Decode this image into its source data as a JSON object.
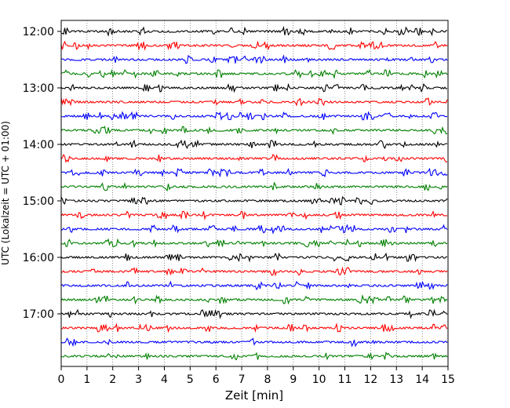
{
  "chart_data": {
    "type": "line",
    "title": "",
    "xlabel": "Zeit  [min]",
    "ylabel": "UTC (Lokalzeit = UTC + 01:00)",
    "xlim": [
      0,
      15
    ],
    "x_ticks": [
      0,
      1,
      2,
      3,
      4,
      5,
      6,
      7,
      8,
      9,
      10,
      11,
      12,
      13,
      14,
      15
    ],
    "x_tick_labels": [
      "0",
      "1",
      "2",
      "3",
      "4",
      "5",
      "6",
      "7",
      "8",
      "9",
      "10",
      "11",
      "12",
      "13",
      "14",
      "15"
    ],
    "y_tick_labels": [
      "12:00",
      "13:00",
      "14:00",
      "15:00",
      "16:00",
      "17:00"
    ],
    "trace_colors": [
      "#000000",
      "#ff0000",
      "#0000ff",
      "#008000"
    ],
    "traces": [
      "12:00",
      "12:15",
      "12:30",
      "12:45",
      "13:00",
      "13:15",
      "13:30",
      "13:45",
      "14:00",
      "14:15",
      "14:30",
      "14:45",
      "15:00",
      "15:15",
      "15:30",
      "15:45",
      "16:00",
      "16:15",
      "16:30",
      "16:45",
      "17:00",
      "17:15",
      "17:30",
      "17:45"
    ],
    "vertical_grid": "dotted",
    "legend": "none"
  }
}
